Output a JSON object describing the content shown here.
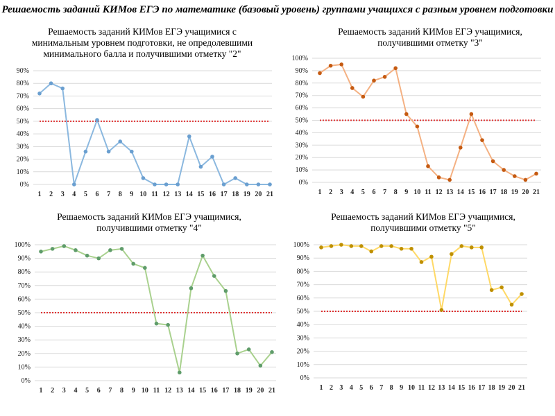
{
  "title": "Решаемость заданий КИМов ЕГЭ по математике (базовый уровень) группами учащихся с разным уровнем подготовки",
  "chart_data": [
    {
      "type": "line",
      "title": "Решаемость заданий КИМов ЕГЭ учащимися с минимальным уровнем подготовки, не опредолевшими минимального балла и получившими отметку \"2\"",
      "categories": [
        "1",
        "2",
        "3",
        "4",
        "5",
        "6",
        "7",
        "8",
        "9",
        "10",
        "11",
        "12",
        "13",
        "14",
        "15",
        "16",
        "17",
        "18",
        "19",
        "20",
        "21"
      ],
      "values": [
        72,
        80,
        76,
        0,
        26,
        51,
        26,
        34,
        26,
        5,
        0,
        0,
        0,
        38,
        14,
        22,
        0,
        5,
        0,
        0,
        0
      ],
      "ylim": [
        0,
        90
      ],
      "ytick_step": 10,
      "y_format": "percent",
      "threshold": 50,
      "grid": true,
      "line_color": "#8bb8df",
      "marker_color": "#6a9fd0",
      "threshold_color": "#e03030"
    },
    {
      "type": "line",
      "title": "Решаемость заданий КИМов ЕГЭ учащимися, получившими отметку \"3\"",
      "categories": [
        "1",
        "2",
        "3",
        "4",
        "5",
        "6",
        "7",
        "8",
        "9",
        "10",
        "11",
        "12",
        "13",
        "14",
        "15",
        "16",
        "17",
        "18",
        "19",
        "20",
        "21"
      ],
      "values": [
        88,
        94,
        95,
        76,
        69,
        82,
        85,
        92,
        55,
        45,
        13,
        4,
        2,
        28,
        55,
        34,
        17,
        10,
        5,
        2,
        7
      ],
      "ylim": [
        0,
        100
      ],
      "ytick_step": 10,
      "y_format": "percent",
      "threshold": 50,
      "grid": true,
      "line_color": "#f4b183",
      "marker_color": "#c55a11",
      "threshold_color": "#e03030"
    },
    {
      "type": "line",
      "title": "Решаемость заданий КИМов ЕГЭ учащимися, получившими отметку \"4\"",
      "categories": [
        "1",
        "2",
        "3",
        "4",
        "5",
        "6",
        "7",
        "8",
        "9",
        "10",
        "11",
        "12",
        "13",
        "14",
        "15",
        "16",
        "17",
        "18",
        "19",
        "20",
        "21"
      ],
      "values": [
        95,
        97,
        99,
        96,
        92,
        90,
        96,
        97,
        86,
        83,
        42,
        41,
        6,
        68,
        92,
        77,
        66,
        20,
        23,
        11,
        21
      ],
      "ylim": [
        0,
        100
      ],
      "ytick_step": 10,
      "y_format": "percent",
      "threshold": 50,
      "grid": true,
      "line_color": "#a9d18e",
      "marker_color": "#5f9c6a",
      "threshold_color": "#e03030"
    },
    {
      "type": "line",
      "title": "Решаемость заданий КИМов ЕГЭ учащимися, получившими отметку \"5\"",
      "categories": [
        "1",
        "2",
        "3",
        "4",
        "5",
        "6",
        "7",
        "8",
        "9",
        "10",
        "11",
        "12",
        "13",
        "14",
        "15",
        "16",
        "17",
        "18",
        "19",
        "20",
        "21"
      ],
      "values": [
        98,
        99,
        100,
        99,
        99,
        95,
        99,
        99,
        97,
        97,
        87,
        91,
        51,
        93,
        99,
        98,
        98,
        66,
        68,
        55,
        63
      ],
      "ylim": [
        0,
        100
      ],
      "ytick_step": 10,
      "y_format": "percent",
      "threshold": 50,
      "grid": true,
      "line_color": "#ffd966",
      "marker_color": "#bf9000",
      "threshold_color": "#e03030"
    }
  ]
}
